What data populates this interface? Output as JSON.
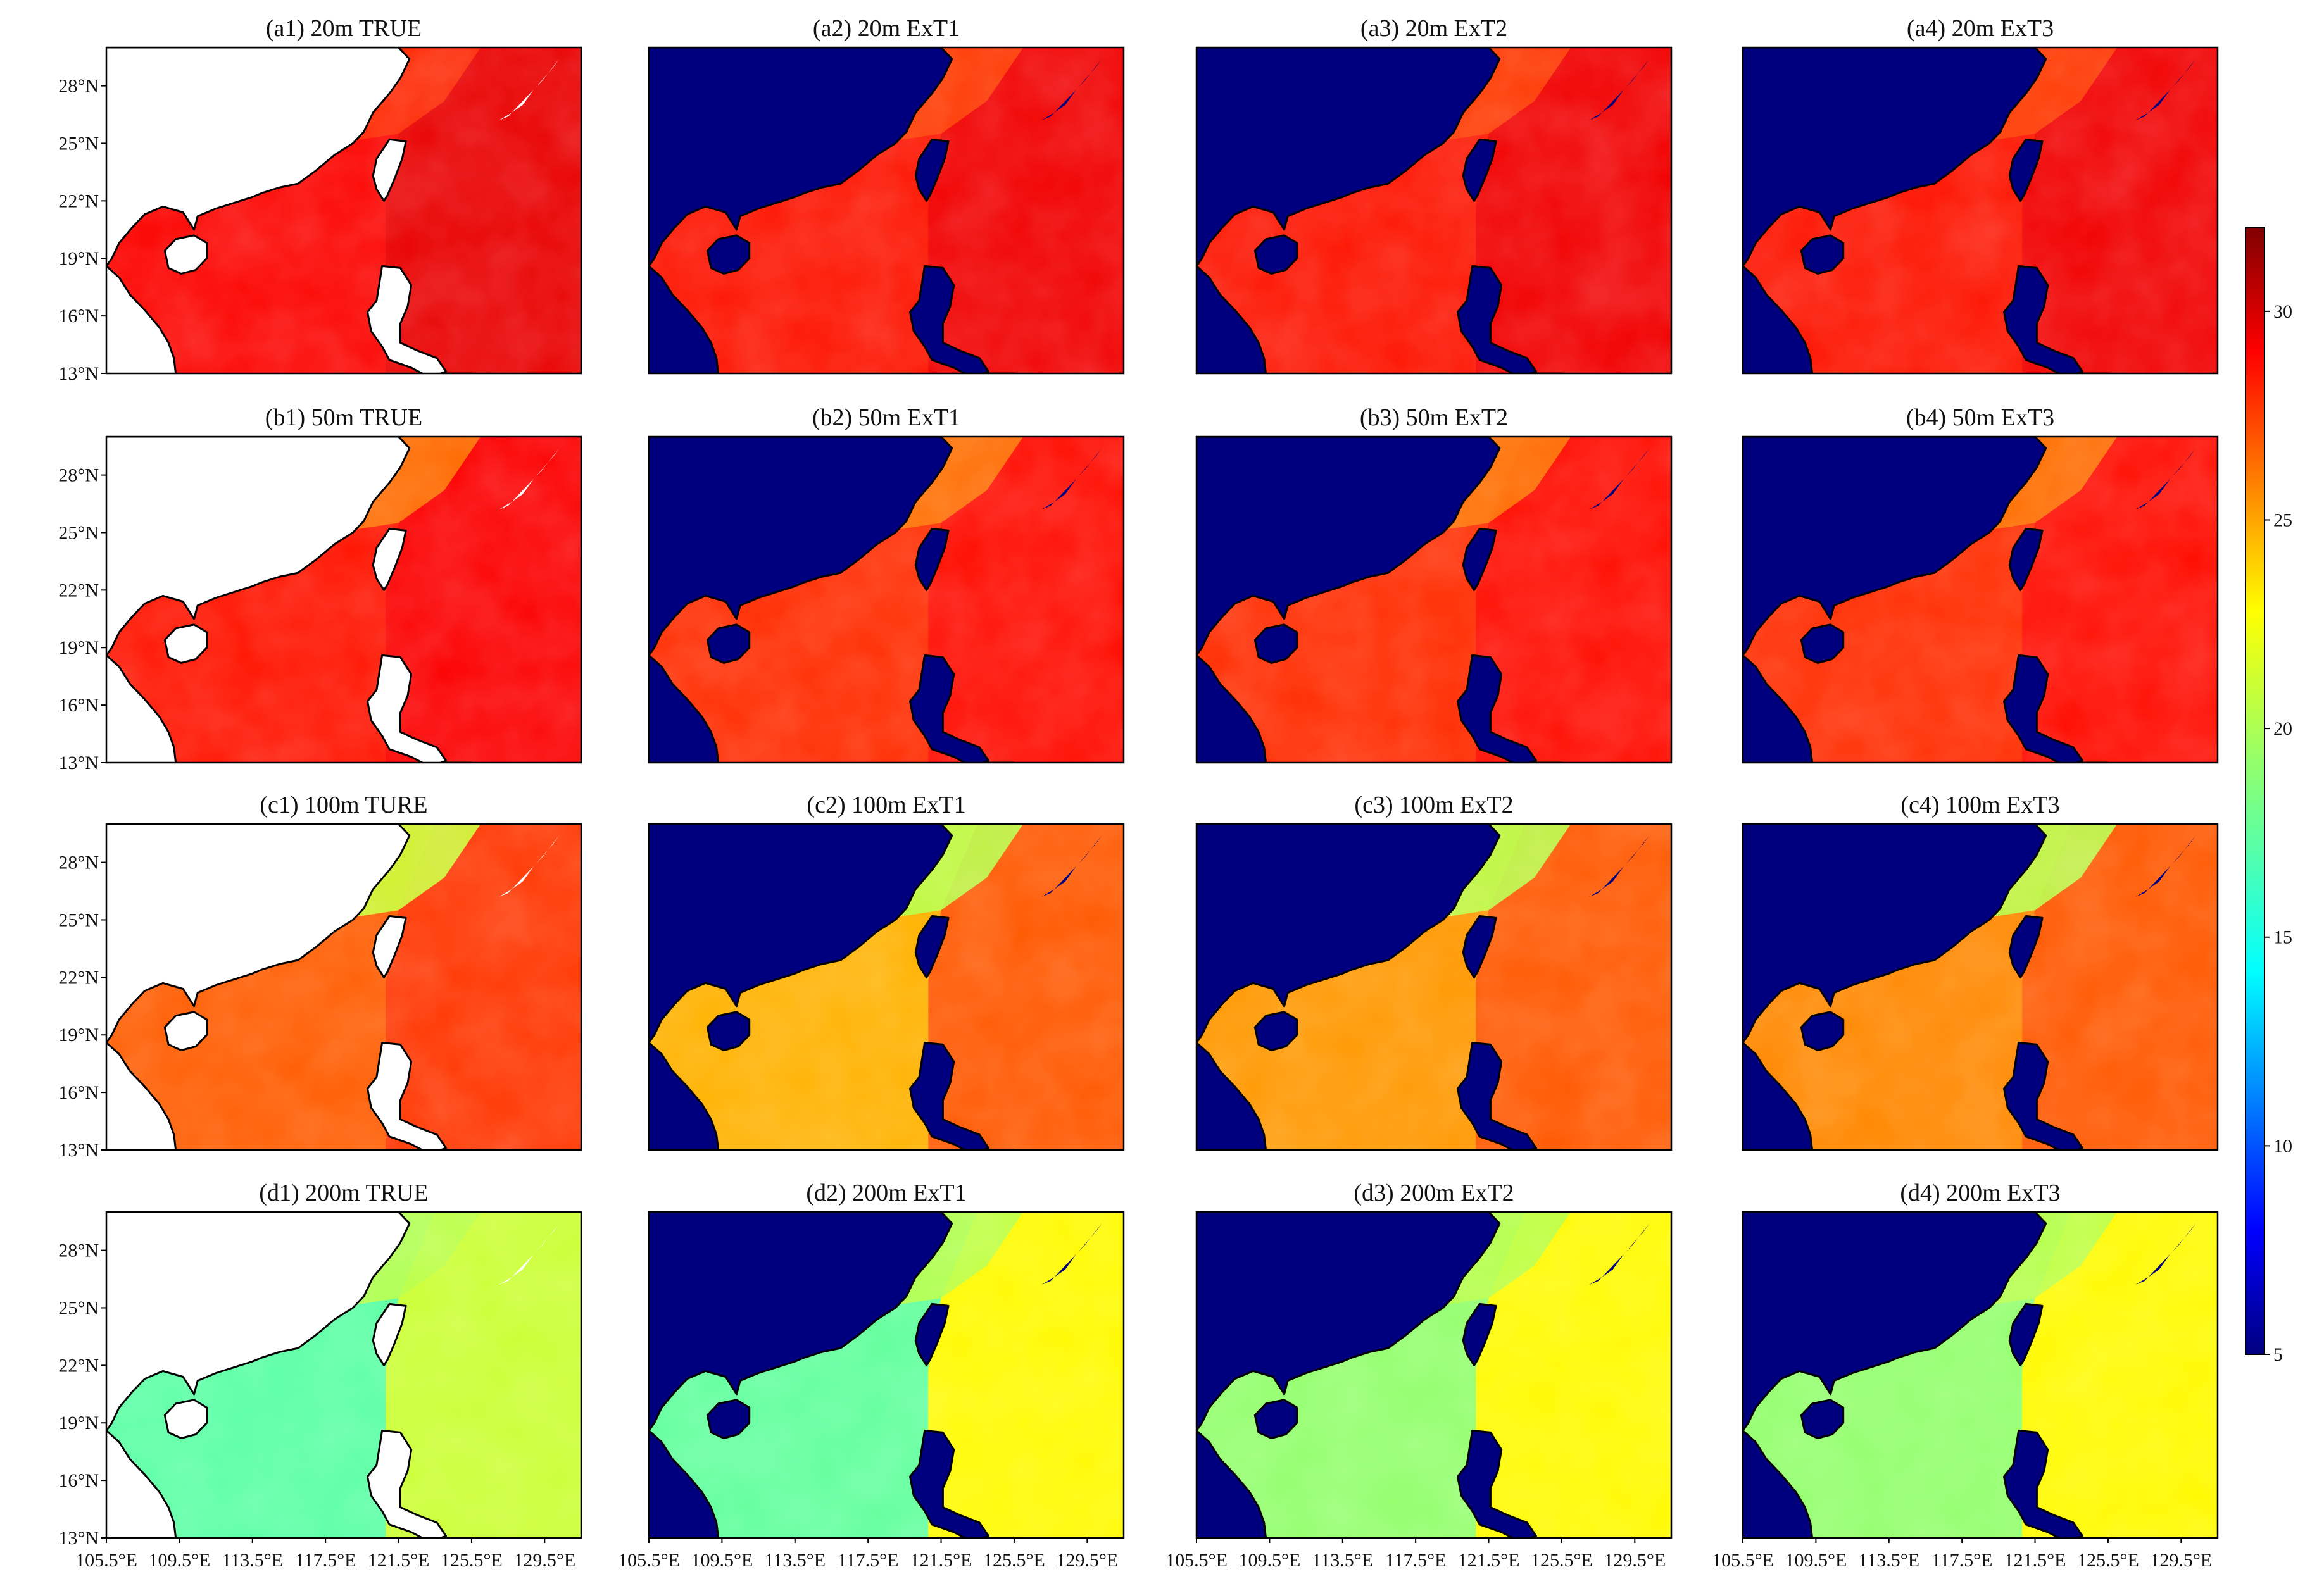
{
  "chart_data": {
    "type": "heatmap",
    "layout": "4x4 map panel grid with shared colorbar on right",
    "colormap": "jet",
    "colorbar": {
      "min": 5,
      "max": 32,
      "ticks": [
        5,
        10,
        15,
        20,
        25,
        30
      ]
    },
    "land_fill": {
      "TRUE": "#ffffff",
      "ExT": "#00007f"
    },
    "x_axis": {
      "ticks": [
        "105.5°E",
        "109.5°E",
        "113.5°E",
        "117.5°E",
        "121.5°E",
        "125.5°E",
        "129.5°E"
      ],
      "range": [
        105.5,
        131.5
      ]
    },
    "y_axis": {
      "ticks": [
        "13°N",
        "16°N",
        "19°N",
        "22°N",
        "25°N",
        "28°N"
      ],
      "range": [
        13,
        30
      ]
    },
    "rows": [
      {
        "depth": "20m",
        "panels": [
          {
            "title": "(a1) 20m TRUE",
            "kind": "TRUE",
            "shelf": 28.5,
            "sea": 29.2,
            "north": 27.5
          },
          {
            "title": "(a2) 20m ExT1",
            "kind": "ExT",
            "shelf": 28.0,
            "sea": 29.0,
            "north": 27.0
          },
          {
            "title": "(a3) 20m ExT2",
            "kind": "ExT",
            "shelf": 28.0,
            "sea": 29.0,
            "north": 27.0
          },
          {
            "title": "(a4) 20m ExT3",
            "kind": "ExT",
            "shelf": 28.0,
            "sea": 29.0,
            "north": 27.0
          }
        ]
      },
      {
        "depth": "50m",
        "panels": [
          {
            "title": "(b1) 50m TRUE",
            "kind": "TRUE",
            "shelf": 28.0,
            "sea": 28.7,
            "north": 25.5
          },
          {
            "title": "(b2) 50m ExT1",
            "kind": "ExT",
            "shelf": 27.3,
            "sea": 28.3,
            "north": 25.5
          },
          {
            "title": "(b3) 50m ExT2",
            "kind": "ExT",
            "shelf": 27.3,
            "sea": 28.3,
            "north": 25.5
          },
          {
            "title": "(b4) 50m ExT3",
            "kind": "ExT",
            "shelf": 27.3,
            "sea": 28.3,
            "north": 25.5
          }
        ]
      },
      {
        "depth": "100m",
        "panels": [
          {
            "title": "(c1) 100m TURE",
            "kind": "TRUE",
            "shelf": 26.0,
            "sea": 27.2,
            "north": 20.5
          },
          {
            "title": "(c2) 100m ExT1",
            "kind": "ExT",
            "shelf": 23.5,
            "sea": 26.3,
            "north": 20.0
          },
          {
            "title": "(c3) 100m ExT2",
            "kind": "ExT",
            "shelf": 24.3,
            "sea": 26.3,
            "north": 20.0
          },
          {
            "title": "(c4) 100m ExT3",
            "kind": "ExT",
            "shelf": 24.8,
            "sea": 26.3,
            "north": 20.0
          }
        ]
      },
      {
        "depth": "200m",
        "panels": [
          {
            "title": "(d1) 200m TRUE",
            "kind": "TRUE",
            "shelf": 17.0,
            "sea": 20.5,
            "north": 20.0
          },
          {
            "title": "(d2) 200m ExT1",
            "kind": "ExT",
            "shelf": 17.0,
            "sea": 22.0,
            "north": 20.0
          },
          {
            "title": "(d3) 200m ExT2",
            "kind": "ExT",
            "shelf": 18.5,
            "sea": 22.0,
            "north": 20.0
          },
          {
            "title": "(d4) 200m ExT3",
            "kind": "ExT",
            "shelf": 18.5,
            "sea": 22.0,
            "north": 20.0
          }
        ]
      }
    ]
  }
}
